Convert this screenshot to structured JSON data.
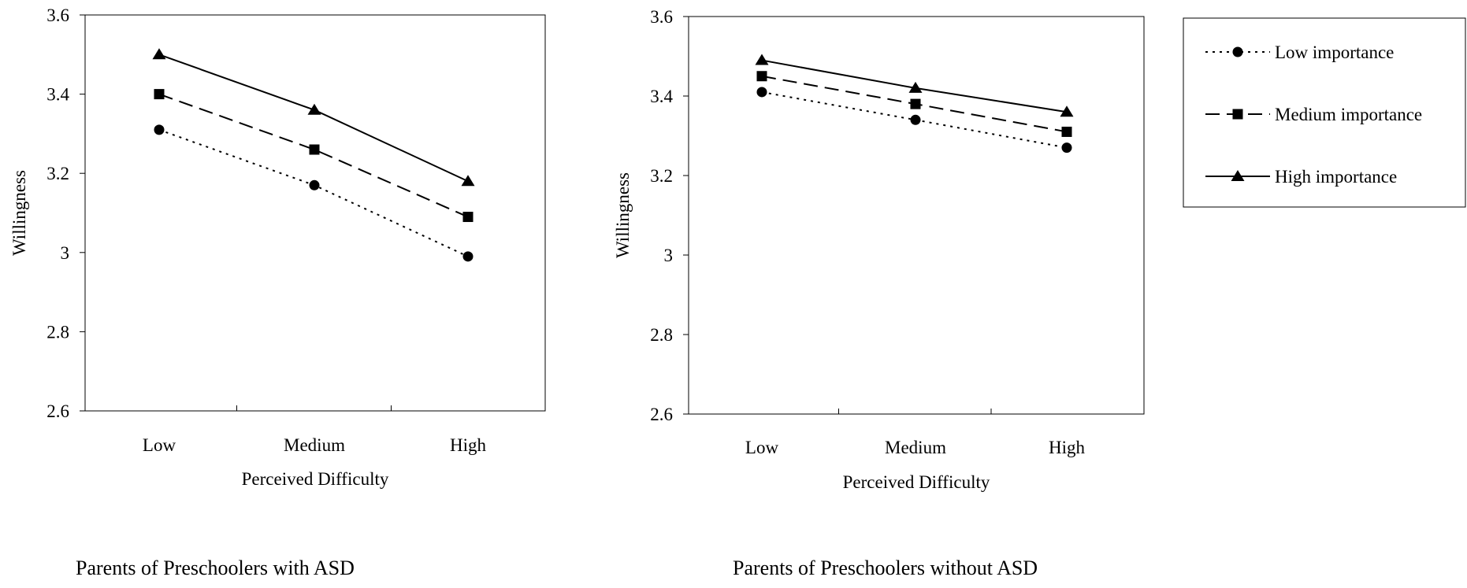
{
  "chart_data": [
    {
      "type": "line",
      "title": "Parents of Preschoolers with ASD",
      "xlabel": "Perceived Difficulty",
      "ylabel": "Willingness",
      "categories": [
        "Low",
        "Medium",
        "High"
      ],
      "ylim": [
        2.6,
        3.6
      ],
      "yticks": [
        2.6,
        2.8,
        3,
        3.2,
        3.4,
        3.6
      ],
      "ytick_labels": [
        "2.6",
        "2.8",
        "3",
        "3.2",
        "3.4",
        "3.6"
      ],
      "grid": false,
      "series": [
        {
          "name": "Low importance",
          "values": [
            3.31,
            3.17,
            2.99
          ],
          "marker": "circle",
          "line": "dotted"
        },
        {
          "name": "Medium importance",
          "values": [
            3.4,
            3.26,
            3.09
          ],
          "marker": "square",
          "line": "dashed"
        },
        {
          "name": "High importance",
          "values": [
            3.5,
            3.36,
            3.18
          ],
          "marker": "triangle",
          "line": "solid"
        }
      ]
    },
    {
      "type": "line",
      "title": "Parents of Preschoolers without ASD",
      "xlabel": "Perceived Difficulty",
      "ylabel": "Willingness",
      "categories": [
        "Low",
        "Medium",
        "High"
      ],
      "ylim": [
        2.6,
        3.6
      ],
      "yticks": [
        2.6,
        2.8,
        3,
        3.2,
        3.4,
        3.6
      ],
      "ytick_labels": [
        "2.6",
        "2.8",
        "3",
        "3.2",
        "3.4",
        "3.6"
      ],
      "grid": false,
      "legend_position": "right",
      "series": [
        {
          "name": "Low importance",
          "values": [
            3.41,
            3.34,
            3.27
          ],
          "marker": "circle",
          "line": "dotted"
        },
        {
          "name": "Medium importance",
          "values": [
            3.45,
            3.38,
            3.31
          ],
          "marker": "square",
          "line": "dashed"
        },
        {
          "name": "High importance",
          "values": [
            3.49,
            3.42,
            3.36
          ],
          "marker": "triangle",
          "line": "solid"
        }
      ]
    }
  ],
  "legend": {
    "items": [
      {
        "label": "Low importance",
        "marker": "circle",
        "line": "dotted"
      },
      {
        "label": "Medium importance",
        "marker": "square",
        "line": "dashed"
      },
      {
        "label": "High importance",
        "marker": "triangle",
        "line": "solid"
      }
    ]
  },
  "colors": {
    "ink": "#000000",
    "background": "#ffffff"
  }
}
